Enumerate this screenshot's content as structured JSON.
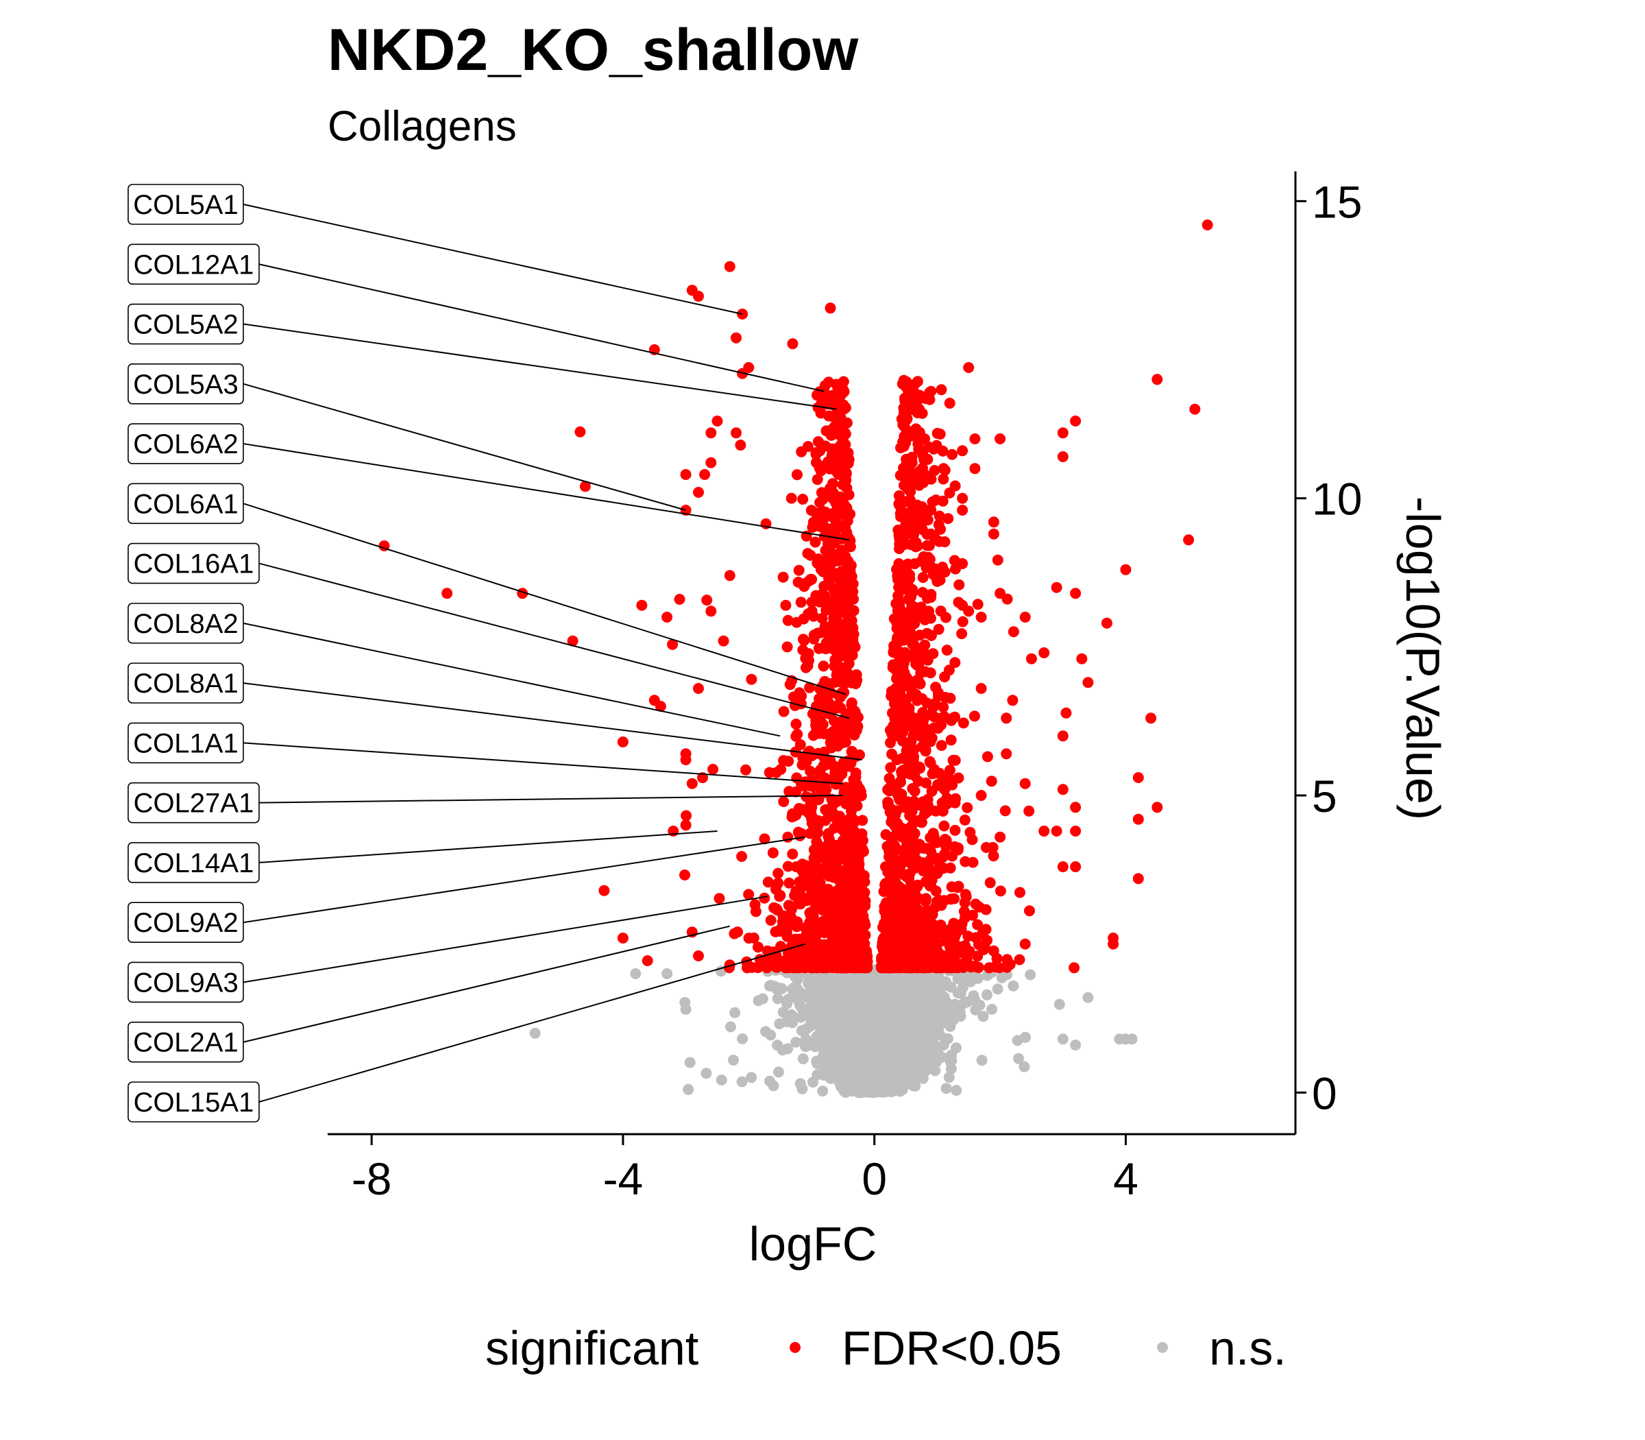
{
  "chart_data": {
    "type": "scatter",
    "title": "NKD2_KO_shallow",
    "subtitle": "Collagens",
    "xlabel": "logFC",
    "ylabel": "-log10(P.Value)",
    "xlim": [
      -8.7,
      6.7
    ],
    "ylim": [
      -0.7,
      15.5
    ],
    "x_ticks": [
      -8,
      -4,
      0,
      4
    ],
    "y_ticks": [
      0,
      5,
      10,
      15
    ],
    "y_axis_side": "right",
    "grid": false,
    "legend": {
      "title": "significant",
      "placement": "bottom",
      "entries": [
        {
          "label": "FDR<0.05",
          "color": "#ff0000"
        },
        {
          "label": "n.s.",
          "color": "#bebebe"
        }
      ]
    },
    "colors": {
      "significant": "#ff0000",
      "ns": "#bebebe"
    },
    "highlighted_genes": [
      {
        "label": "COL5A1",
        "x": -2.1,
        "y": 13.1
      },
      {
        "label": "COL12A1",
        "x": -0.8,
        "y": 11.8
      },
      {
        "label": "COL5A2",
        "x": -0.6,
        "y": 11.5
      },
      {
        "label": "COL5A3",
        "x": -3.0,
        "y": 9.8
      },
      {
        "label": "COL6A2",
        "x": -0.4,
        "y": 9.3
      },
      {
        "label": "COL6A1",
        "x": -0.45,
        "y": 6.7
      },
      {
        "label": "COL16A1",
        "x": -0.4,
        "y": 6.3
      },
      {
        "label": "COL8A2",
        "x": -1.5,
        "y": 6.0
      },
      {
        "label": "COL8A1",
        "x": -0.2,
        "y": 5.6
      },
      {
        "label": "COL1A1",
        "x": -0.5,
        "y": 5.2
      },
      {
        "label": "COL27A1",
        "x": -0.5,
        "y": 5.0
      },
      {
        "label": "COL14A1",
        "x": -2.5,
        "y": 4.4
      },
      {
        "label": "COL9A2",
        "x": -1.1,
        "y": 4.3
      },
      {
        "label": "COL9A3",
        "x": -1.7,
        "y": 3.3
      },
      {
        "label": "COL2A1",
        "x": -2.3,
        "y": 2.8
      },
      {
        "label": "COL15A1",
        "x": -1.1,
        "y": 2.5
      }
    ],
    "outlier_points": [
      {
        "x": 5.3,
        "y": 14.6
      },
      {
        "x": -2.3,
        "y": 13.9
      },
      {
        "x": -2.9,
        "y": 13.5
      },
      {
        "x": -2.8,
        "y": 13.4
      },
      {
        "x": -0.7,
        "y": 13.2
      },
      {
        "x": -2.1,
        "y": 13.1
      },
      {
        "x": -2.2,
        "y": 12.7
      },
      {
        "x": -1.3,
        "y": 12.6
      },
      {
        "x": -3.5,
        "y": 12.5
      },
      {
        "x": -2.0,
        "y": 12.2
      },
      {
        "x": 1.5,
        "y": 12.2
      },
      {
        "x": -2.1,
        "y": 12.1
      },
      {
        "x": 4.5,
        "y": 12.0
      },
      {
        "x": 0.9,
        "y": 11.8
      },
      {
        "x": -0.8,
        "y": 11.8
      },
      {
        "x": 1.2,
        "y": 11.6
      },
      {
        "x": 5.1,
        "y": 11.5
      },
      {
        "x": -2.5,
        "y": 11.3
      },
      {
        "x": 3.2,
        "y": 11.3
      },
      {
        "x": 3.0,
        "y": 11.1
      },
      {
        "x": -2.6,
        "y": 11.1
      },
      {
        "x": -2.2,
        "y": 11.1
      },
      {
        "x": 2.0,
        "y": 11.0
      },
      {
        "x": 1.6,
        "y": 11.0
      },
      {
        "x": 0.8,
        "y": 11.0
      },
      {
        "x": 1.4,
        "y": 10.8
      },
      {
        "x": 3.0,
        "y": 10.7
      },
      {
        "x": 0.6,
        "y": 10.6
      },
      {
        "x": -2.6,
        "y": 10.6
      },
      {
        "x": 1.6,
        "y": 10.5
      },
      {
        "x": 0.8,
        "y": 10.4
      },
      {
        "x": 1.1,
        "y": 10.5
      },
      {
        "x": -3.0,
        "y": 10.4
      },
      {
        "x": -2.7,
        "y": 10.4
      },
      {
        "x": -4.6,
        "y": 10.2
      },
      {
        "x": -2.8,
        "y": 10.1
      },
      {
        "x": 1.4,
        "y": 10.0
      },
      {
        "x": 0.6,
        "y": 9.9
      },
      {
        "x": 1.4,
        "y": 9.8
      },
      {
        "x": 0.9,
        "y": 9.8
      },
      {
        "x": -3.0,
        "y": 9.8
      },
      {
        "x": 1.9,
        "y": 9.6
      },
      {
        "x": 0.6,
        "y": 9.4
      },
      {
        "x": 0.9,
        "y": 9.4
      },
      {
        "x": 1.9,
        "y": 9.4
      },
      {
        "x": 5.0,
        "y": 9.3
      },
      {
        "x": -7.8,
        "y": 9.2
      },
      {
        "x": 1.4,
        "y": 8.9
      },
      {
        "x": 4.0,
        "y": 8.8
      },
      {
        "x": -2.3,
        "y": 8.7
      },
      {
        "x": 1.0,
        "y": 8.6
      },
      {
        "x": 0.5,
        "y": 8.5
      },
      {
        "x": 2.9,
        "y": 8.5
      },
      {
        "x": 3.2,
        "y": 8.4
      },
      {
        "x": 2.0,
        "y": 8.4
      },
      {
        "x": -6.8,
        "y": 8.4
      },
      {
        "x": -5.6,
        "y": 8.4
      },
      {
        "x": -3.1,
        "y": 8.3
      },
      {
        "x": 1.4,
        "y": 8.2
      },
      {
        "x": 1.5,
        "y": 8.1
      },
      {
        "x": -3.7,
        "y": 8.2
      },
      {
        "x": 2.4,
        "y": 8.0
      },
      {
        "x": -3.3,
        "y": 8.0
      },
      {
        "x": -2.6,
        "y": 8.1
      },
      {
        "x": 1.7,
        "y": 8.0
      },
      {
        "x": 3.7,
        "y": 7.9
      },
      {
        "x": -2.4,
        "y": 7.6
      },
      {
        "x": -4.8,
        "y": 7.6
      },
      {
        "x": 2.7,
        "y": 7.4
      },
      {
        "x": 2.5,
        "y": 7.3
      },
      {
        "x": 3.3,
        "y": 7.3
      },
      {
        "x": 3.4,
        "y": 6.9
      },
      {
        "x": 1.7,
        "y": 6.8
      },
      {
        "x": -2.8,
        "y": 6.8
      },
      {
        "x": 2.2,
        "y": 6.6
      },
      {
        "x": -3.5,
        "y": 6.6
      },
      {
        "x": -3.4,
        "y": 6.5
      },
      {
        "x": 2.1,
        "y": 6.3
      },
      {
        "x": 4.4,
        "y": 6.3
      },
      {
        "x": 3.0,
        "y": 6.0
      },
      {
        "x": -4.0,
        "y": 5.9
      },
      {
        "x": 2.1,
        "y": 5.7
      },
      {
        "x": -3.0,
        "y": 5.7
      },
      {
        "x": -3.0,
        "y": 5.6
      },
      {
        "x": 4.2,
        "y": 5.3
      },
      {
        "x": -2.9,
        "y": 5.2
      },
      {
        "x": 2.4,
        "y": 5.2
      },
      {
        "x": 3.0,
        "y": 5.1
      },
      {
        "x": 1.7,
        "y": 5.0
      },
      {
        "x": 4.5,
        "y": 4.8
      },
      {
        "x": 3.2,
        "y": 4.8
      },
      {
        "x": 4.2,
        "y": 4.6
      },
      {
        "x": 2.7,
        "y": 4.4
      },
      {
        "x": 3.2,
        "y": 4.4
      },
      {
        "x": 2.9,
        "y": 4.4
      },
      {
        "x": -3.2,
        "y": 4.4
      },
      {
        "x": -3.0,
        "y": 4.5
      },
      {
        "x": 2.0,
        "y": 4.3
      },
      {
        "x": -4.3,
        "y": 3.4
      },
      {
        "x": 3.2,
        "y": 3.8
      },
      {
        "x": 3.0,
        "y": 3.8
      },
      {
        "x": 4.2,
        "y": 3.6
      },
      {
        "x": -4.0,
        "y": 2.6
      },
      {
        "x": 3.8,
        "y": 2.6
      },
      {
        "x": 3.8,
        "y": 2.5
      },
      {
        "x": -2.9,
        "y": 2.7
      },
      {
        "x": -2.8,
        "y": 2.3
      },
      {
        "x": 2.4,
        "y": 2.5
      },
      {
        "x": -5.4,
        "y": 1.0
      },
      {
        "x": 3.4,
        "y": 1.6
      },
      {
        "x": 4.1,
        "y": 0.9
      },
      {
        "x": 4.0,
        "y": 0.9
      },
      {
        "x": 3.9,
        "y": 0.9
      },
      {
        "x": 3.0,
        "y": 0.9
      },
      {
        "x": 3.2,
        "y": 0.8
      },
      {
        "x": -3.0,
        "y": 1.4
      },
      {
        "x": -3.8,
        "y": 2.0
      },
      {
        "x": -3.3,
        "y": 2.0
      }
    ],
    "core_distribution": {
      "sig_count": 2400,
      "ns_count": 3400,
      "fdr_threshold_y": 2.1,
      "max_y": 14.6
    }
  }
}
